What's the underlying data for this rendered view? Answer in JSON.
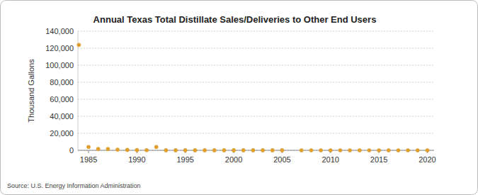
{
  "chart_data": {
    "type": "scatter",
    "title": "Annual Texas Total Distillate Sales/Deliveries to Other End Users",
    "y_label": "Thousand Gallons",
    "source": "Source: U.S. Energy Information Administration",
    "color": "#e0a030",
    "marker": "circle",
    "grid": true,
    "x": [
      1984,
      1985,
      1986,
      1987,
      1988,
      1989,
      1990,
      1991,
      1992,
      1993,
      1994,
      1995,
      1996,
      1997,
      1998,
      1999,
      2000,
      2001,
      2002,
      2003,
      2004,
      2005,
      2007,
      2008,
      2009,
      2010,
      2011,
      2012,
      2013,
      2014,
      2015,
      2016,
      2017,
      2018,
      2019,
      2020
    ],
    "values": [
      124000,
      4000,
      1600,
      1600,
      800,
      500,
      300,
      200,
      4000,
      100,
      100,
      100,
      100,
      100,
      100,
      100,
      100,
      100,
      100,
      100,
      100,
      100,
      50,
      50,
      50,
      50,
      50,
      50,
      50,
      50,
      50,
      50,
      50,
      50,
      50,
      50
    ],
    "xlim": [
      1983.9,
      2020.7
    ],
    "xticks": [
      1985,
      1990,
      1995,
      2000,
      2005,
      2010,
      2015,
      2020
    ],
    "ylim": [
      0,
      140000
    ],
    "yticks": [
      0,
      {
        "value": 20000,
        "label": "20,000"
      },
      {
        "value": 40000,
        "label": "40,000"
      },
      {
        "value": 60000,
        "label": "60,000"
      },
      {
        "value": 80000,
        "label": "80,000"
      },
      {
        "value": 100000,
        "label": "100,000"
      },
      {
        "value": 120000,
        "label": "120,000"
      },
      {
        "value": 140000,
        "label": "140,000"
      }
    ]
  }
}
